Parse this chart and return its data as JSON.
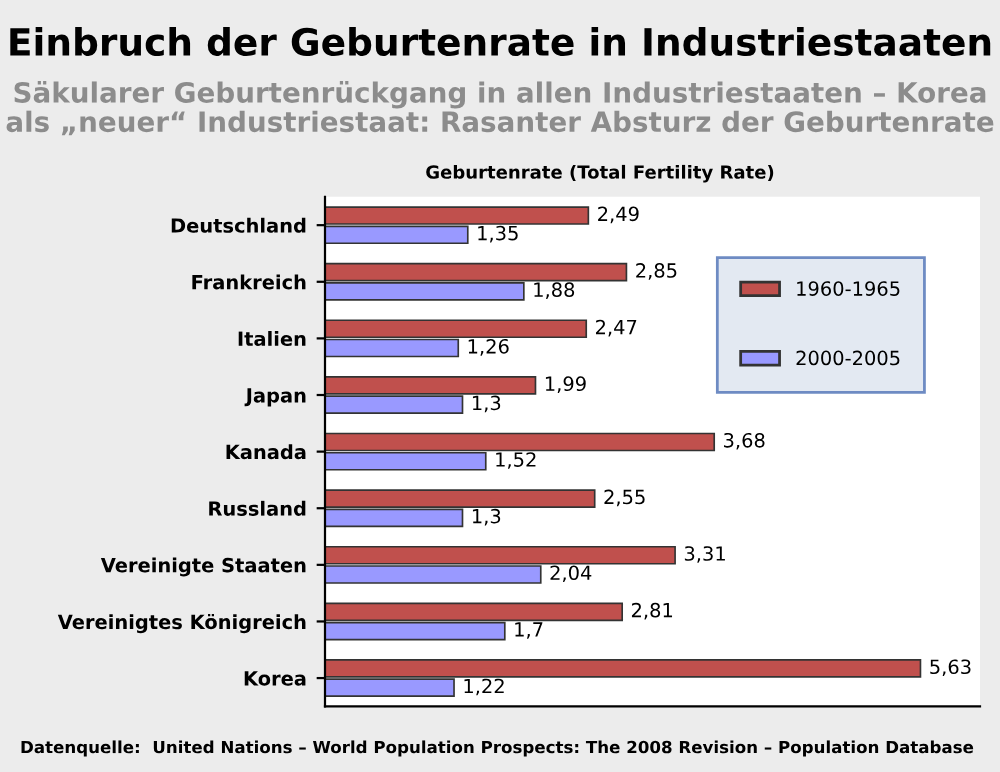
{
  "chart_data": {
    "type": "bar",
    "orientation": "horizontal",
    "title": "Einbruch der Geburtenrate in Industriestaaten",
    "subtitle": "Säkularer Geburtenrückgang in allen Industriestaaten – Korea als „neuer“ Industriestaat: Rasanter Absturz der Geburtenrate",
    "xlabel": "Geburtenrate (Total Fertility Rate)",
    "categories": [
      "Deutschland",
      "Frankreich",
      "Italien",
      "Japan",
      "Kanada",
      "Russland",
      "Vereinigte Staaten",
      "Vereinigtes Königreich",
      "Korea"
    ],
    "series": [
      {
        "name": "1960-1965",
        "color": "#c0504d",
        "values": [
          2.49,
          2.85,
          2.47,
          1.99,
          3.68,
          2.55,
          3.31,
          2.81,
          5.63
        ],
        "value_labels": [
          "2,49",
          "2,85",
          "2,47",
          "1,99",
          "3,68",
          "2,55",
          "3,31",
          "2,81",
          "5,63"
        ]
      },
      {
        "name": "2000-2005",
        "color": "#9999ff",
        "values": [
          1.35,
          1.88,
          1.26,
          1.3,
          1.52,
          1.3,
          2.04,
          1.7,
          1.22
        ],
        "value_labels": [
          "1,35",
          "1,88",
          "1,26",
          "1,3",
          "1,52",
          "1,3",
          "2,04",
          "1,7",
          "1,22"
        ]
      }
    ],
    "tick_labels": "y",
    "grid": false,
    "legend": "top right",
    "annotations": [
      "Datenquelle:  United Nations – World Population Prospects: The 2008 Revision – Population Database"
    ]
  }
}
